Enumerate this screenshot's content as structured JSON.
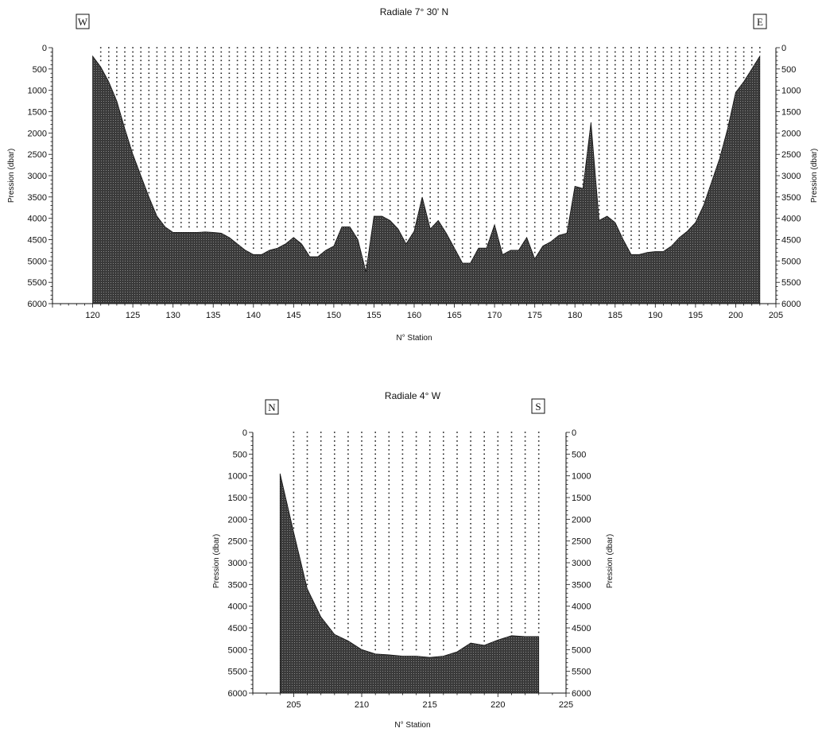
{
  "chart_data": [
    {
      "type": "area",
      "title": "Radiale 7° 30' N",
      "xlabel": "N° Station",
      "ylabel": "Pression (dbar)",
      "ylabel_right": "Pression (dbar)",
      "corner_labels": [
        "W",
        "E"
      ],
      "xlim": [
        115,
        205
      ],
      "ylim": [
        6000,
        0
      ],
      "xticks": [
        "120",
        "125",
        "130",
        "135",
        "140",
        "145",
        "150",
        "155",
        "160",
        "165",
        "170",
        "175",
        "180",
        "185",
        "190",
        "195",
        "200",
        "205"
      ],
      "yticks": [
        "0",
        "500",
        "1000",
        "1500",
        "2000",
        "2500",
        "3000",
        "3500",
        "4000",
        "4500",
        "5000",
        "5500",
        "6000"
      ],
      "sample_spacing_dbar": 100,
      "stations": [
        120,
        121,
        122,
        123,
        124,
        125,
        126,
        127,
        128,
        129,
        130,
        131,
        132,
        133,
        134,
        135,
        136,
        137,
        138,
        139,
        140,
        141,
        142,
        143,
        144,
        145,
        146,
        147,
        148,
        149,
        150,
        151,
        152,
        153,
        154,
        155,
        156,
        157,
        158,
        159,
        160,
        161,
        162,
        163,
        164,
        165,
        166,
        167,
        168,
        169,
        170,
        171,
        172,
        173,
        174,
        175,
        176,
        177,
        178,
        179,
        180,
        181,
        182,
        183,
        184,
        185,
        186,
        187,
        188,
        189,
        190,
        191,
        192,
        193,
        194,
        195,
        196,
        197,
        198,
        199,
        200,
        201,
        202,
        203
      ],
      "bottom_depth": [
        200,
        450,
        800,
        1250,
        1900,
        2500,
        3000,
        3500,
        3950,
        4200,
        4330,
        4330,
        4330,
        4330,
        4320,
        4330,
        4350,
        4450,
        4600,
        4750,
        4850,
        4850,
        4750,
        4700,
        4600,
        4450,
        4600,
        4900,
        4900,
        4750,
        4650,
        4200,
        4200,
        4500,
        5250,
        3950,
        3950,
        4050,
        4250,
        4600,
        4300,
        3500,
        4250,
        4050,
        4350,
        4700,
        5050,
        5050,
        4700,
        4700,
        4150,
        4850,
        4750,
        4750,
        4450,
        4950,
        4650,
        4550,
        4400,
        4350,
        3250,
        3300,
        1750,
        4050,
        3950,
        4100,
        4500,
        4850,
        4850,
        4800,
        4780,
        4780,
        4650,
        4450,
        4300,
        4100,
        3700,
        3150,
        2600,
        1900,
        1050,
        800,
        500,
        200
      ]
    },
    {
      "type": "area",
      "title": "Radiale 4° W",
      "xlabel": "N° Station",
      "ylabel": "Pression (dbar)",
      "ylabel_right": "Pression (dbar)",
      "corner_labels": [
        "N",
        "S"
      ],
      "xlim": [
        202,
        225
      ],
      "ylim": [
        6000,
        0
      ],
      "xticks": [
        "205",
        "210",
        "215",
        "220",
        "225"
      ],
      "yticks": [
        "0",
        "500",
        "1000",
        "1500",
        "2000",
        "2500",
        "3000",
        "3500",
        "4000",
        "4500",
        "5000",
        "5500",
        "6000"
      ],
      "sample_spacing_dbar": 100,
      "stations": [
        204,
        205,
        206,
        207,
        208,
        209,
        210,
        211,
        212,
        213,
        214,
        215,
        216,
        217,
        218,
        219,
        220,
        221,
        222,
        223
      ],
      "bottom_depth": [
        950,
        2300,
        3600,
        4250,
        4650,
        4800,
        5000,
        5100,
        5120,
        5150,
        5150,
        5180,
        5150,
        5050,
        4850,
        4900,
        4780,
        4680,
        4700,
        4700
      ]
    }
  ]
}
